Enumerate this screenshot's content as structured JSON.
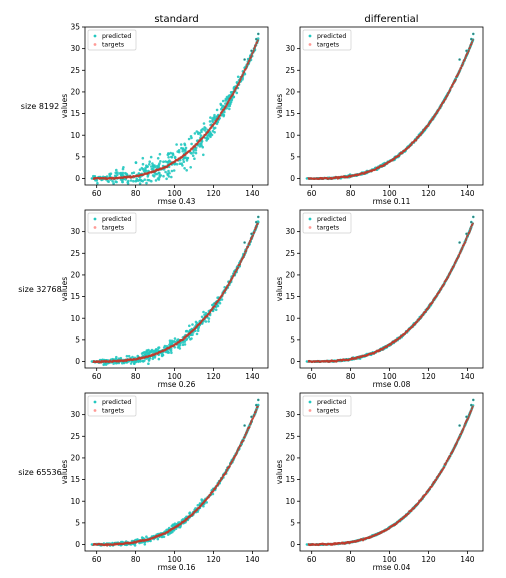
{
  "column_titles": [
    "standard",
    "differential"
  ],
  "row_labels": [
    "size 8192",
    "size 32768",
    "size 65536"
  ],
  "colors": {
    "predicted": "#22c8c0",
    "targets": "#ff9a96",
    "curve": "#c03a2b",
    "frame": "#000000"
  },
  "chart_data": [
    {
      "type": "scatter",
      "row": 0,
      "col": 0,
      "title": "standard",
      "xlabel": "rmse 0.43",
      "ylabel": "values",
      "xlim": [
        54,
        148
      ],
      "ylim": [
        -1.5,
        35
      ],
      "xticks": [
        60,
        80,
        100,
        120,
        140
      ],
      "yticks": [
        0,
        5,
        10,
        15,
        20,
        25,
        30,
        35
      ],
      "legend": [
        "predicted",
        "targets"
      ],
      "legend_position": "upper left",
      "curve": "y = 30*((x-58)/83)^3",
      "x_range": [
        58,
        143
      ],
      "noise": 1.3
    },
    {
      "type": "scatter",
      "row": 0,
      "col": 1,
      "title": "differential",
      "xlabel": "rmse 0.11",
      "ylabel": "values",
      "xlim": [
        54,
        148
      ],
      "ylim": [
        -1.5,
        35
      ],
      "xticks": [
        60,
        80,
        100,
        120,
        140
      ],
      "yticks": [
        0,
        5,
        10,
        15,
        20,
        25,
        30
      ],
      "legend": [
        "predicted",
        "targets"
      ],
      "legend_position": "upper left",
      "curve": "y = 30*((x-58)/83)^3",
      "x_range": [
        58,
        143
      ],
      "noise": 0.12
    },
    {
      "type": "scatter",
      "row": 1,
      "col": 0,
      "title": "",
      "xlabel": "",
      "ylabel": "values",
      "xlim": [
        54,
        148
      ],
      "ylim": [
        -1.5,
        35
      ],
      "xticks": [
        60,
        80,
        100,
        120,
        140
      ],
      "yticks": [
        0,
        5,
        10,
        15,
        20,
        25,
        30
      ],
      "legend": [
        "predicted",
        "targets"
      ],
      "legend_position": "upper left",
      "curve": "y = 30*((x-58)/83)^3",
      "x_range": [
        58,
        143
      ],
      "noise": 0.6
    },
    {
      "type": "scatter",
      "row": 1,
      "col": 1,
      "title": "",
      "xlabel": "rmse 0.08",
      "ylabel": "values",
      "xlim": [
        54,
        148
      ],
      "ylim": [
        -1.5,
        35
      ],
      "xticks": [
        60,
        80,
        100,
        120,
        140
      ],
      "yticks": [
        0,
        5,
        10,
        15,
        20,
        25,
        30
      ],
      "legend": [
        "predicted",
        "targets"
      ],
      "legend_position": "upper left",
      "curve": "y = 30*((x-58)/83)^3",
      "x_range": [
        58,
        143
      ],
      "noise": 0.09
    },
    {
      "type": "scatter",
      "row": 2,
      "col": 0,
      "title": "",
      "xlabel": "rmse 0.16",
      "ylabel": "values",
      "xlim": [
        54,
        148
      ],
      "ylim": [
        -1.5,
        35
      ],
      "xticks": [
        60,
        80,
        100,
        120,
        140
      ],
      "yticks": [
        0,
        5,
        10,
        15,
        20,
        25,
        30
      ],
      "legend": [
        "predicted",
        "targets"
      ],
      "legend_position": "upper left",
      "curve": "y = 30*((x-58)/83)^3",
      "x_range": [
        58,
        143
      ],
      "noise": 0.3
    },
    {
      "type": "scatter",
      "row": 2,
      "col": 1,
      "title": "",
      "xlabel": "rmse 0.04",
      "ylabel": "values",
      "xlim": [
        54,
        148
      ],
      "ylim": [
        -1.5,
        35
      ],
      "xticks": [
        60,
        80,
        100,
        120,
        140
      ],
      "yticks": [
        0,
        5,
        10,
        15,
        20,
        25,
        30
      ],
      "legend": [
        "predicted",
        "targets"
      ],
      "legend_position": "upper left",
      "curve": "y = 30*((x-58)/83)^3",
      "x_range": [
        58,
        143
      ],
      "noise": 0.05
    }
  ],
  "extra_labels": {
    "middle_left_xlabel": "rmse 0.26"
  }
}
